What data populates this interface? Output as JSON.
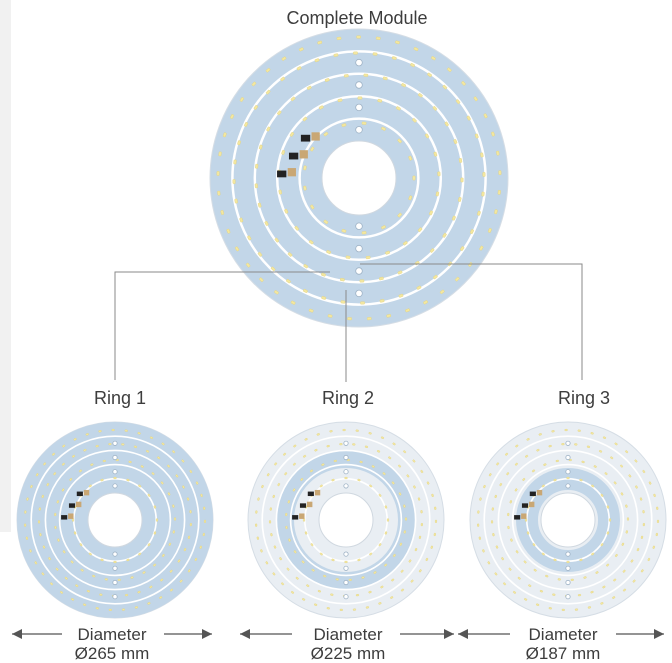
{
  "title": "Complete Module",
  "colors": {
    "pcb_blue": "#c2d6e8",
    "pcb_faded": "#e9eef3",
    "trace": "#ffffff",
    "led": "#f3e7a0",
    "connector": "#c9a774",
    "component_dark": "#222222",
    "leader_line": "#8a8a8a"
  },
  "rings": [
    {
      "label": "Ring 1",
      "diameter_label": "Diameter",
      "diameter_value": "Ø265 mm"
    },
    {
      "label": "Ring 2",
      "diameter_label": "Diameter",
      "diameter_value": "Ø225 mm"
    },
    {
      "label": "Ring 3",
      "diameter_label": "Diameter",
      "diameter_value": "Ø187 mm"
    }
  ]
}
